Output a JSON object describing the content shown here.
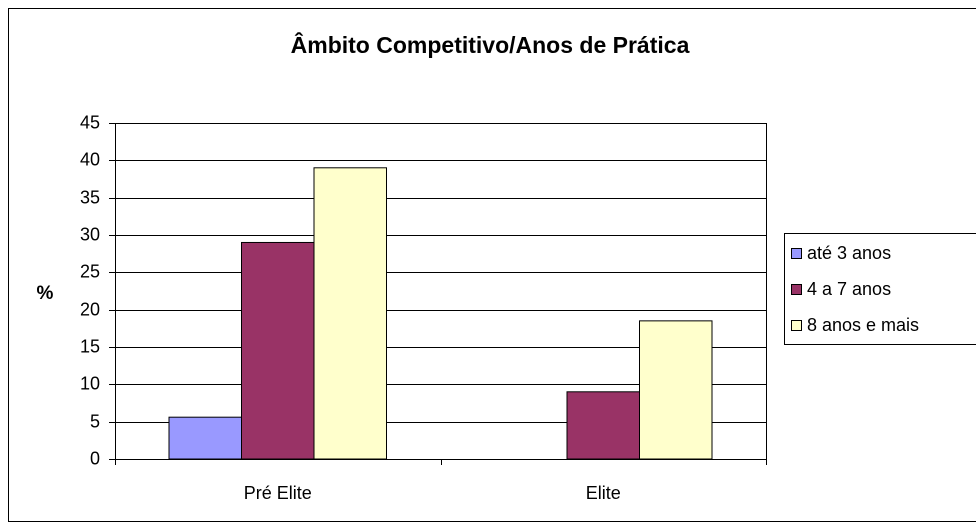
{
  "chart_data": {
    "type": "bar",
    "title": "Âmbito Competitivo/Anos de Prática",
    "y_label": "%",
    "categories": [
      "Pré Elite",
      "Elite"
    ],
    "series": [
      {
        "name": "até 3 anos",
        "color": "#9999ff",
        "values": [
          5.6,
          0
        ]
      },
      {
        "name": "4 a 7 anos",
        "color": "#993366",
        "values": [
          29,
          9
        ]
      },
      {
        "name": "8 anos e mais",
        "color": "#ffffcc",
        "values": [
          39,
          18.5
        ]
      }
    ],
    "ylim": [
      0,
      45
    ],
    "yticks": [
      0,
      5,
      10,
      15,
      20,
      25,
      30,
      35,
      40,
      45
    ],
    "grid": true,
    "legend": "right"
  }
}
